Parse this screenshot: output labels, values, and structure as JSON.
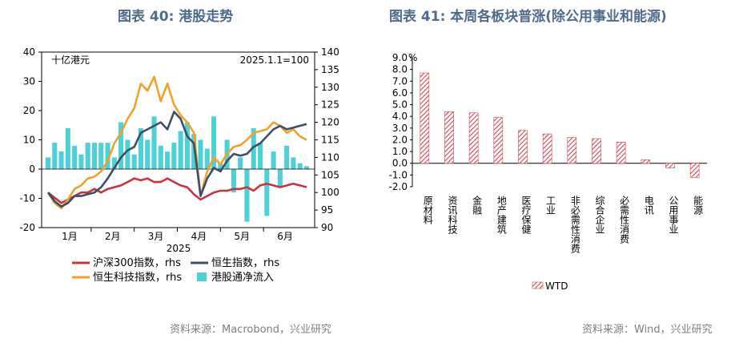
{
  "left": {
    "title": "图表 40: 港股走势",
    "source": "资料来源：Macrobond，兴业研究",
    "unit_note": "十亿港元",
    "base_note": "2025.1.1=100",
    "year_label": "2025",
    "chart_data": {
      "type": "line",
      "x_months": [
        "1月",
        "2月",
        "3月",
        "4月",
        "5月",
        "6月"
      ],
      "left_axis": {
        "ylim": [
          -20,
          40
        ],
        "ticks": [
          -20,
          -10,
          0,
          10,
          20,
          30,
          40
        ],
        "label": "十亿港元"
      },
      "right_axis": {
        "ylim": [
          90,
          140
        ],
        "ticks": [
          90,
          95,
          100,
          105,
          110,
          115,
          120,
          125,
          130,
          135,
          140
        ]
      },
      "colors": {
        "csi300": "#c8333f",
        "hsi": "#3d4f66",
        "hstech": "#f0a12b",
        "flow": "#4dd0d6"
      },
      "series": [
        {
          "name": "沪深300指数，rhs",
          "axis": "right",
          "kind": "line",
          "values": [
            100,
            98.5,
            97,
            98,
            99,
            100,
            100,
            101,
            100,
            101,
            101.5,
            102,
            103,
            104,
            103.5,
            104,
            103,
            103,
            104,
            103,
            102,
            101.5,
            99.5,
            98,
            99,
            100,
            100.5,
            100.5,
            101,
            101,
            101.5,
            100.5,
            102,
            102.5,
            102,
            101.5,
            102,
            102.5,
            102,
            101.5
          ]
        },
        {
          "name": "恒生指数，rhs",
          "axis": "right",
          "kind": "line",
          "values": [
            100,
            97.5,
            96,
            97,
            99,
            99,
            99.5,
            100,
            101.5,
            104,
            107,
            110,
            112,
            113,
            117,
            118,
            119,
            120,
            118,
            123,
            121,
            116,
            114,
            99,
            104,
            107,
            106,
            109,
            111,
            110.5,
            111,
            113,
            114,
            116,
            118,
            119,
            118,
            118.5,
            119,
            119.5
          ]
        },
        {
          "name": "恒生科技指数，rhs",
          "axis": "right",
          "kind": "line",
          "values": [
            100,
            97,
            95.5,
            98,
            101,
            102,
            104,
            104.5,
            106,
            109,
            114,
            117,
            121,
            124,
            131,
            129,
            133,
            126,
            131,
            125,
            122,
            120,
            117,
            99,
            106,
            110,
            108,
            111,
            113,
            113.5,
            115,
            117,
            117.5,
            118,
            120,
            119,
            117,
            118,
            116,
            115
          ]
        },
        {
          "name": "港股通净流入",
          "axis": "left",
          "kind": "bar",
          "values": [
            4,
            9,
            6,
            14,
            8,
            5,
            9,
            9,
            9,
            9,
            4,
            16,
            10,
            5,
            14,
            10,
            18,
            8,
            6,
            9,
            13,
            16,
            12,
            10,
            7,
            18,
            2,
            10,
            -8,
            4,
            -18,
            14,
            9,
            -16,
            6,
            -6,
            8,
            4,
            2,
            1
          ]
        }
      ],
      "legend": "bottom"
    }
  },
  "right": {
    "title": "图表 41: 本周各板块普涨(除公用事业和能源)",
    "source": "资料来源：Wind，兴业研究",
    "chart_data": {
      "type": "bar",
      "categories": [
        "原材料",
        "资讯科技",
        "金融",
        "地产建筑",
        "医疗保健",
        "工业",
        "非必需性消费",
        "综合企业",
        "必需性消费",
        "电讯",
        "公用事业",
        "能源"
      ],
      "series": [
        {
          "name": "WTD",
          "values": [
            7.7,
            4.4,
            4.3,
            3.9,
            2.8,
            2.5,
            2.2,
            2.1,
            1.8,
            0.3,
            -0.4,
            -1.2
          ]
        }
      ],
      "ylim": [
        -2.0,
        9.0
      ],
      "ticks": [
        "9.0",
        "8.0",
        "7.0",
        "6.0",
        "5.0",
        "4.0",
        "3.0",
        "2.0",
        "1.0",
        "0.0",
        "-1.0",
        "-2.0"
      ],
      "ylabel": "%",
      "bar_color": "#d64552",
      "legend": "bottom-left"
    }
  }
}
